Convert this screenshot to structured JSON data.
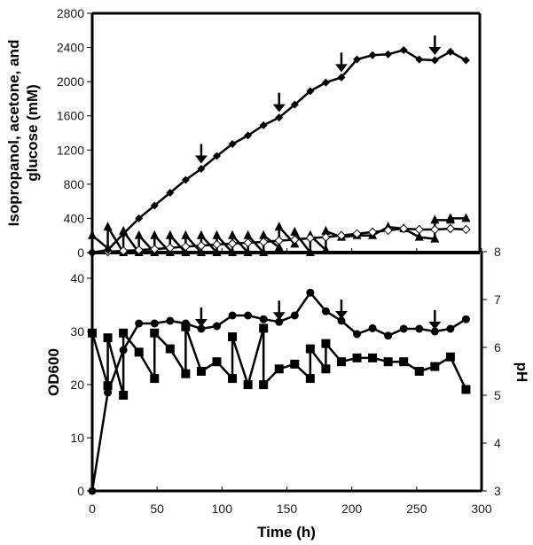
{
  "chart_data": [
    {
      "type": "line",
      "panel": "top",
      "title": "",
      "xlabel": "",
      "ylabel": "Isopropanol, acetone, and glucose (mM)",
      "ylim": [
        0,
        2800
      ],
      "xlim": [
        0,
        300
      ],
      "yticks": [
        0,
        400,
        800,
        1200,
        1600,
        2000,
        2400,
        2800
      ],
      "grid": false,
      "series": [
        {
          "name": "Isopropanol",
          "marker": "filled-diamond",
          "x": [
            0,
            12,
            24,
            36,
            48,
            60,
            72,
            84,
            96,
            108,
            120,
            132,
            144,
            156,
            168,
            180,
            192,
            204,
            216,
            228,
            240,
            252,
            264,
            276,
            288
          ],
          "values": [
            0,
            30,
            220,
            400,
            550,
            700,
            850,
            980,
            1130,
            1270,
            1370,
            1490,
            1580,
            1730,
            1890,
            1990,
            2050,
            2260,
            2310,
            2320,
            2370,
            2260,
            2250,
            2350,
            2250
          ]
        },
        {
          "name": "Acetone",
          "marker": "open-diamond",
          "x": [
            0,
            12,
            24,
            36,
            48,
            60,
            72,
            84,
            96,
            108,
            120,
            132,
            144,
            156,
            168,
            180,
            192,
            204,
            216,
            228,
            240,
            252,
            264,
            276,
            288
          ],
          "values": [
            0,
            10,
            20,
            30,
            40,
            55,
            70,
            80,
            95,
            105,
            115,
            125,
            140,
            150,
            170,
            180,
            200,
            220,
            240,
            260,
            280,
            270,
            270,
            280,
            270
          ]
        },
        {
          "name": "Glucose",
          "marker": "filled-triangle",
          "x": [
            0,
            12,
            12,
            24,
            24,
            36,
            36,
            48,
            48,
            60,
            60,
            72,
            72,
            84,
            84,
            96,
            96,
            108,
            108,
            120,
            120,
            132,
            132,
            144,
            144,
            156,
            156,
            168,
            168,
            180,
            180,
            192,
            204,
            216,
            228,
            240,
            252,
            264,
            264,
            276,
            276,
            288
          ],
          "values": [
            200,
            50,
            300,
            0,
            250,
            0,
            200,
            0,
            200,
            0,
            200,
            0,
            200,
            0,
            200,
            0,
            200,
            0,
            200,
            0,
            200,
            0,
            200,
            60,
            300,
            100,
            240,
            0,
            200,
            30,
            250,
            180,
            200,
            200,
            300,
            280,
            180,
            160,
            380,
            380,
            400,
            400
          ]
        }
      ],
      "annotations": [
        {
          "type": "down-arrow",
          "x": 84,
          "label": ""
        },
        {
          "type": "down-arrow",
          "x": 144,
          "label": ""
        },
        {
          "type": "down-arrow",
          "x": 192,
          "label": ""
        },
        {
          "type": "down-arrow",
          "x": 264,
          "label": ""
        }
      ]
    },
    {
      "type": "line",
      "panel": "bottom",
      "title": "",
      "xlabel": "Time (h)",
      "ylabel": "OD600",
      "y2label": "pH",
      "xlim": [
        0,
        300
      ],
      "xticks": [
        0,
        50,
        100,
        150,
        200,
        250,
        300
      ],
      "ylim": [
        0,
        45
      ],
      "yticks": [
        0,
        10,
        20,
        30,
        40
      ],
      "y2lim": [
        3,
        8
      ],
      "y2ticks": [
        3,
        4,
        5,
        6,
        7,
        8
      ],
      "grid": false,
      "series": [
        {
          "name": "OD600",
          "axis": "left",
          "marker": "filled-circle",
          "x": [
            0,
            12,
            24,
            36,
            48,
            60,
            72,
            84,
            96,
            108,
            120,
            132,
            144,
            156,
            168,
            180,
            192,
            204,
            216,
            228,
            240,
            252,
            264,
            276,
            288
          ],
          "values": [
            0,
            18.5,
            26.5,
            31.5,
            31.5,
            32,
            31.5,
            30.5,
            31,
            33,
            33,
            32.3,
            31.8,
            33,
            37.3,
            33.8,
            32,
            29.5,
            30.6,
            29.2,
            30.5,
            30.5,
            30,
            30.5,
            32.3
          ]
        },
        {
          "name": "pH",
          "axis": "right",
          "marker": "filled-square",
          "x": [
            0,
            12,
            12,
            24,
            24,
            36,
            48,
            48,
            60,
            72,
            72,
            84,
            96,
            108,
            108,
            120,
            132,
            132,
            144,
            156,
            168,
            168,
            180,
            180,
            192,
            204,
            216,
            228,
            240,
            252,
            264,
            276,
            288
          ],
          "values": [
            6.3,
            5.2,
            6.2,
            5.0,
            6.3,
            5.9,
            5.35,
            6.3,
            5.97,
            5.45,
            6.43,
            5.5,
            5.7,
            5.35,
            6.22,
            5.22,
            6.4,
            5.22,
            5.55,
            5.65,
            5.35,
            5.97,
            5.55,
            6.08,
            5.7,
            5.78,
            5.78,
            5.7,
            5.7,
            5.5,
            5.6,
            5.8,
            5.12
          ]
        }
      ],
      "annotations": [
        {
          "type": "down-arrow",
          "x": 84,
          "label": ""
        },
        {
          "type": "down-arrow",
          "x": 144,
          "label": ""
        },
        {
          "type": "down-arrow",
          "x": 192,
          "label": ""
        },
        {
          "type": "down-arrow",
          "x": 264,
          "label": ""
        }
      ]
    }
  ],
  "labels": {
    "top_ylabel_line1": "Isopropanol, acetone, and",
    "top_ylabel_line2": "glucose (mM)",
    "bottom_ylabel": "OD600",
    "bottom_y2label": "pH",
    "xlabel": "Time (h)"
  },
  "colors": {
    "line": "#000000",
    "open_marker_fill": "#ffffff",
    "background": "#ffffff"
  }
}
